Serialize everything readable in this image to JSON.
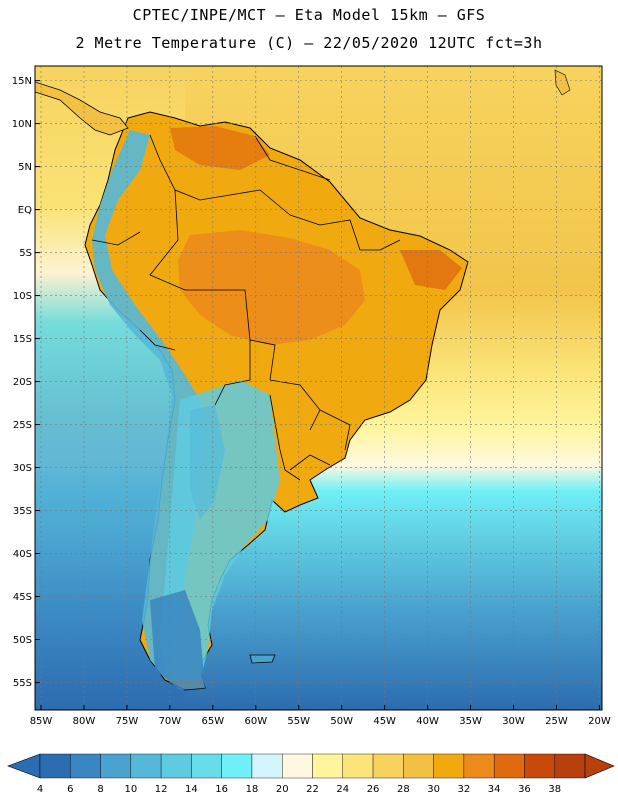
{
  "title_line1": "CPTEC/INPE/MCT –  Eta Model 15km – GFS",
  "title_line2": "2 Metre Temperature (C) – 22/05/2020 12UTC fct=3h",
  "map": {
    "lat_labels": [
      "15N",
      "10N",
      "5N",
      "EQ",
      "5S",
      "10S",
      "15S",
      "20S",
      "25S",
      "30S",
      "35S",
      "40S",
      "45S",
      "50S",
      "55S"
    ],
    "lat_values": [
      15,
      10,
      5,
      0,
      -5,
      -10,
      -15,
      -20,
      -25,
      -30,
      -35,
      -40,
      -45,
      -50,
      -55
    ],
    "lon_labels": [
      "85W",
      "80W",
      "75W",
      "70W",
      "65W",
      "60W",
      "55W",
      "50W",
      "45W",
      "40W",
      "35W",
      "30W",
      "25W",
      "20W"
    ],
    "lon_values": [
      -85,
      -80,
      -75,
      -70,
      -65,
      -60,
      -55,
      -50,
      -45,
      -40,
      -35,
      -30,
      -25,
      -20
    ],
    "extent": {
      "lon_min": -85.7,
      "lon_max": -19.7,
      "lat_min": -58.2,
      "lat_max": 16.7
    }
  },
  "colorbar": {
    "labels": [
      "4",
      "6",
      "8",
      "10",
      "12",
      "14",
      "16",
      "18",
      "20",
      "22",
      "24",
      "26",
      "28",
      "30",
      "32",
      "34",
      "36",
      "38"
    ],
    "colors": [
      "#2c6cb0",
      "#3a86c2",
      "#4aa3cf",
      "#55b8d8",
      "#5fcbe0",
      "#66dde9",
      "#6ff0f6",
      "#d2f4fb",
      "#fff8e0",
      "#fff59c",
      "#fbe57a",
      "#f7d35e",
      "#f2c043",
      "#f0aa10",
      "#ec8a1c",
      "#e06a10",
      "#c84a0a",
      "#b8400c"
    ]
  }
}
